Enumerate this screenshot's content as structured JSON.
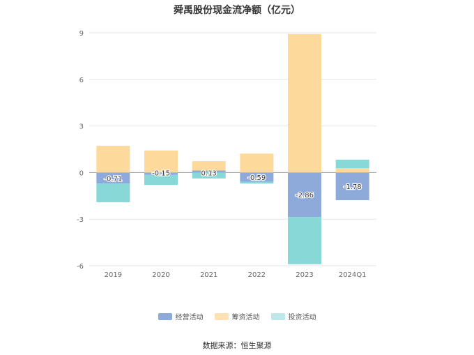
{
  "title": "舜禹股份现金流净额（亿元）",
  "source_note": "数据来源：恒生聚源",
  "chart_data": {
    "type": "bar",
    "stacked": true,
    "categories": [
      "2019",
      "2020",
      "2021",
      "2022",
      "2023",
      "2024Q1"
    ],
    "y_ticks": [
      9,
      6,
      3,
      0,
      -3,
      -6
    ],
    "ylim": [
      -6,
      9
    ],
    "grid": true,
    "legend_position": "bottom",
    "series": [
      {
        "name": "经营活动",
        "color": "#8eaadb",
        "values": [
          -0.71,
          -0.15,
          0.13,
          -0.59,
          -2.86,
          -1.78
        ],
        "labels": [
          "-0.71",
          "-0.15",
          "0.13",
          "-0.59",
          "-2.86",
          "-1.78"
        ]
      },
      {
        "name": "筹资活动",
        "color": "#fdd99b",
        "values": [
          1.72,
          1.42,
          0.6,
          1.22,
          8.92,
          0.28
        ]
      },
      {
        "name": "投资活动",
        "color": "#88d8d8",
        "values": [
          -1.2,
          -0.65,
          -0.38,
          -0.12,
          -3.04,
          0.55
        ]
      }
    ]
  },
  "legend": {
    "items": [
      {
        "label": "经营活动",
        "color": "#8eaadb"
      },
      {
        "label": "筹资活动",
        "color": "#fde2b6"
      },
      {
        "label": "投资活动",
        "color": "#bfe8e8"
      }
    ]
  }
}
